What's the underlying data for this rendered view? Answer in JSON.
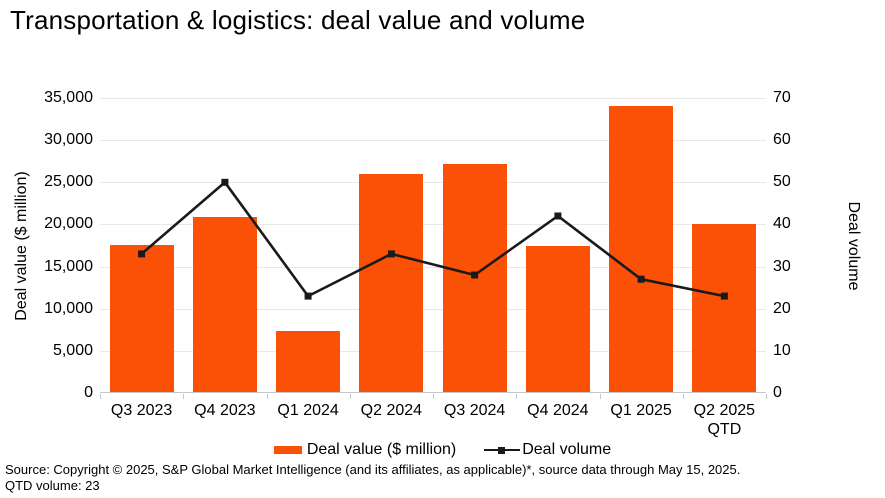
{
  "title": "Transportation & logistics: deal value and volume",
  "chart_data": {
    "type": "bar+line combo",
    "categories": [
      "Q3 2023",
      "Q4 2023",
      "Q1 2024",
      "Q2 2024",
      "Q3 2024",
      "Q4 2024",
      "Q1 2025",
      "Q2 2025\nQTD"
    ],
    "series": [
      {
        "name": "Deal value ($ million)",
        "type": "bar",
        "axis": "left",
        "color": "#FA5106",
        "values": [
          17500,
          20800,
          7200,
          25900,
          27000,
          17300,
          33900,
          19900
        ]
      },
      {
        "name": "Deal volume",
        "type": "line",
        "axis": "right",
        "color": "#1A1A1A",
        "marker": "square",
        "values": [
          33,
          50,
          23,
          33,
          28,
          42,
          27,
          23
        ]
      }
    ],
    "left_axis": {
      "title": "Deal value ($ million)",
      "min": 0,
      "max": 35000,
      "tick_labels": [
        "0",
        "5,000",
        "10,000",
        "15,000",
        "20,000",
        "25,000",
        "30,000",
        "35,000"
      ]
    },
    "right_axis": {
      "title": "Deal volume",
      "min": 0,
      "max": 70,
      "tick_labels": [
        "0",
        "10",
        "20",
        "30",
        "40",
        "50",
        "60",
        "70"
      ]
    },
    "grid": true,
    "legend_position": "bottom"
  },
  "legend": {
    "bar_label": "Deal value ($ million)",
    "line_label": "Deal volume"
  },
  "footer": {
    "source": "Source: Copyright © 2025, S&P Global Market Intelligence (and its affiliates, as applicable)*, source data through May 15, 2025.",
    "qtd": "QTD volume: 23"
  },
  "colors": {
    "bar": "#FA5106",
    "line": "#1A1A1A",
    "grid": "#E8E8E8",
    "axis": "#C6C6C6",
    "text": "#000000"
  }
}
